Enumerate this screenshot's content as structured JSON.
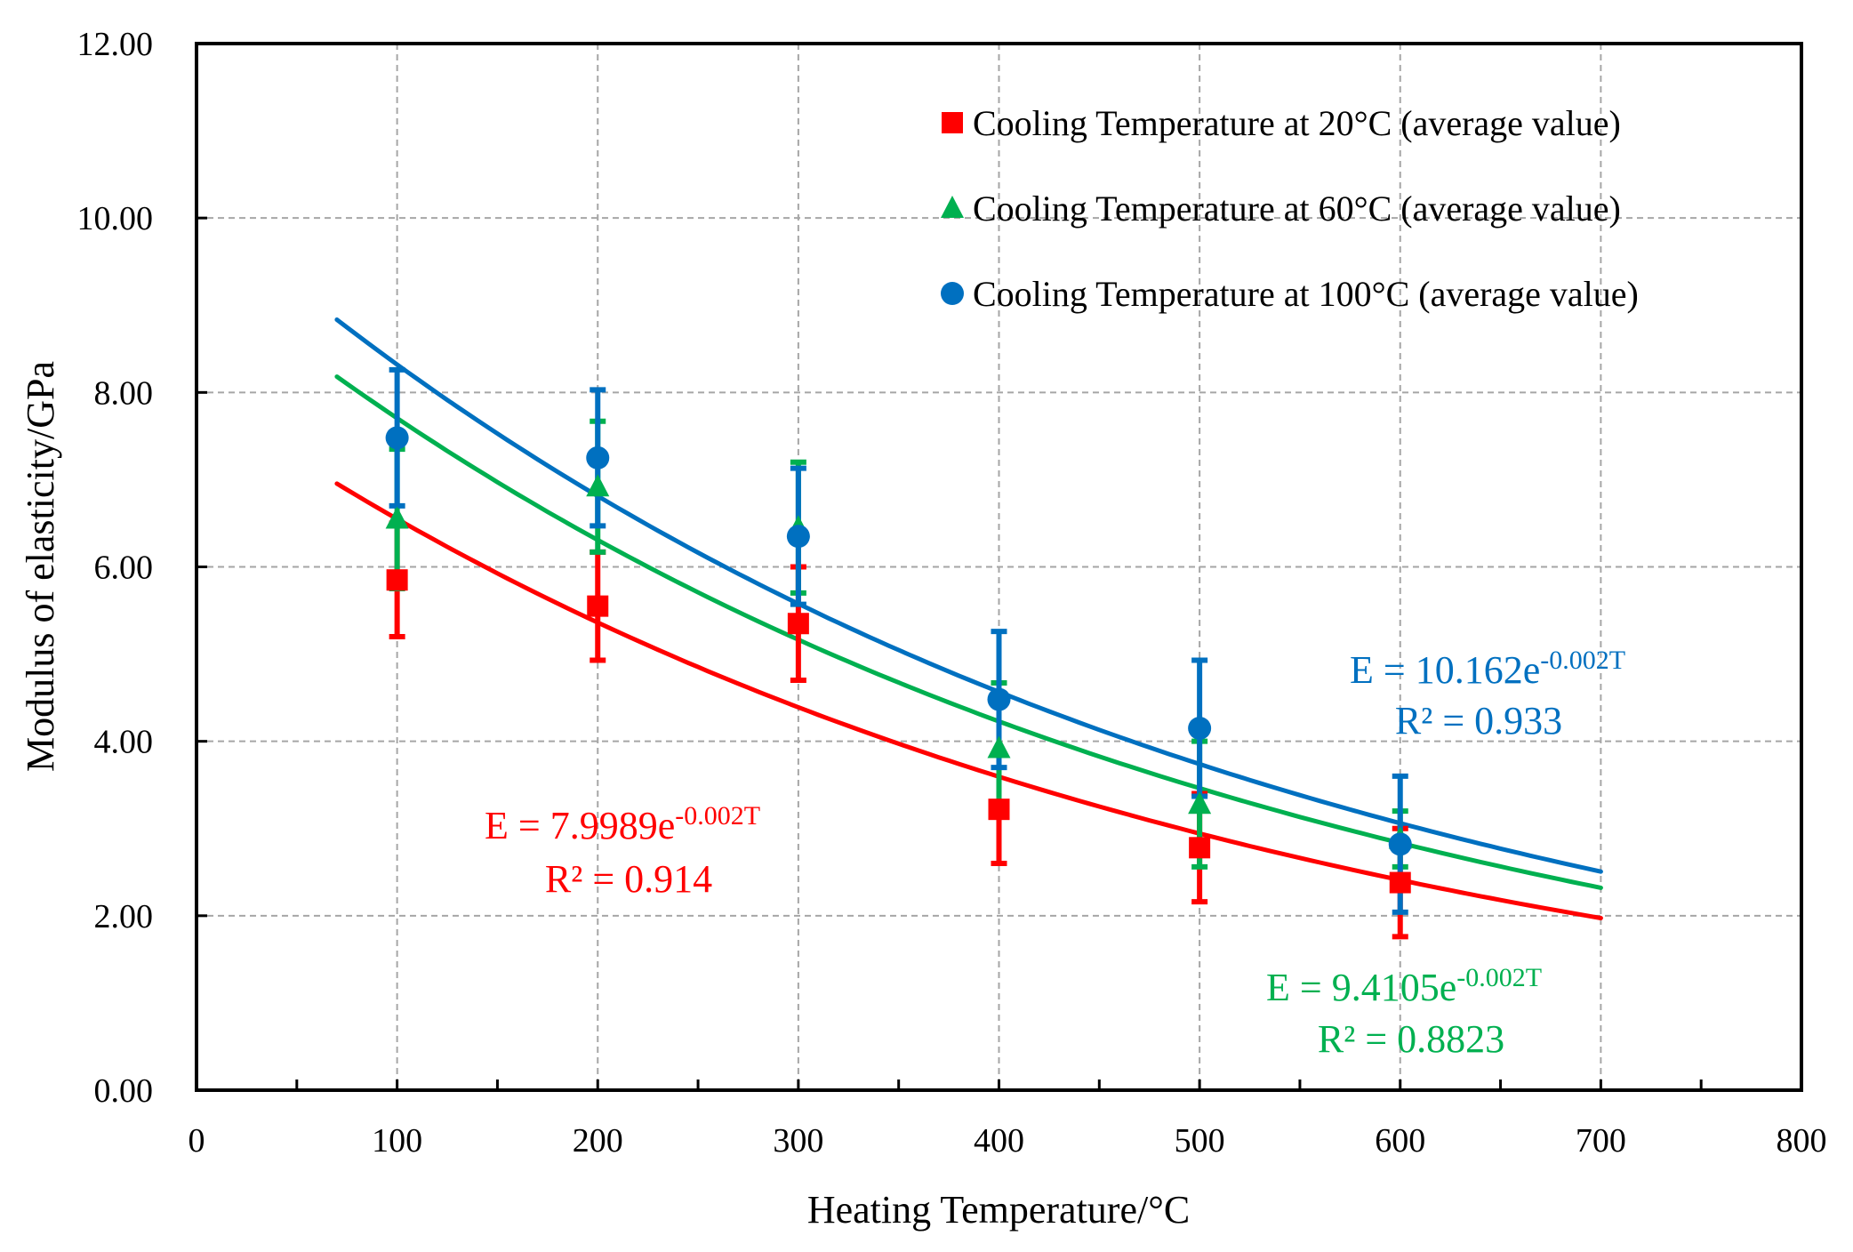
{
  "chart_data": {
    "type": "scatter",
    "xlabel": "Heating Temperature/°C",
    "ylabel": "Modulus of elasticity/GPa",
    "xlim": [
      0,
      800
    ],
    "ylim": [
      0,
      12
    ],
    "xticks": [
      {
        "value": 0,
        "label": "0"
      },
      {
        "value": 100,
        "label": "100"
      },
      {
        "value": 200,
        "label": "200"
      },
      {
        "value": 300,
        "label": "300"
      },
      {
        "value": 400,
        "label": "400"
      },
      {
        "value": 500,
        "label": "500"
      },
      {
        "value": 600,
        "label": "600"
      },
      {
        "value": 700,
        "label": "700"
      },
      {
        "value": 800,
        "label": "800"
      }
    ],
    "yticks": [
      {
        "value": 0,
        "label": "0.00"
      },
      {
        "value": 2,
        "label": "2.00"
      },
      {
        "value": 4,
        "label": "4.00"
      },
      {
        "value": 6,
        "label": "6.00"
      },
      {
        "value": 8,
        "label": "8.00"
      },
      {
        "value": 10,
        "label": "10.00"
      },
      {
        "value": 12,
        "label": "12.00"
      }
    ],
    "grid": true,
    "legend_position": "top-right",
    "series": [
      {
        "name": "Cooling Temperature at 20°C (average value)",
        "key": "cool20",
        "color": "#ff0000",
        "marker": "square",
        "x": [
          100,
          200,
          300,
          400,
          500,
          600
        ],
        "y": [
          5.85,
          5.55,
          5.35,
          3.22,
          2.78,
          2.38
        ],
        "error": [
          0.65,
          0.62,
          0.65,
          0.62,
          0.62,
          0.62
        ],
        "fit": {
          "a": 7.9989,
          "b": -0.002,
          "x_range": [
            70,
            700
          ],
          "equation_prefix": "E = 7.9989e",
          "equation_exponent": "-0.002T",
          "r2_text": "R² = 0.914"
        }
      },
      {
        "name": "Cooling Temperature at 60°C (average value)",
        "key": "cool60",
        "color": "#00b050",
        "marker": "triangle",
        "x": [
          100,
          200,
          300,
          400,
          500,
          600
        ],
        "y": [
          6.55,
          6.92,
          6.45,
          3.92,
          3.28,
          2.88
        ],
        "error": [
          0.8,
          0.75,
          0.75,
          0.75,
          0.72,
          0.32
        ],
        "fit": {
          "a": 9.4105,
          "b": -0.002,
          "x_range": [
            70,
            700
          ],
          "equation_prefix": "E = 9.4105e",
          "equation_exponent": "-0.002T",
          "r2_text": "R² = 0.8823"
        }
      },
      {
        "name": "Cooling Temperature at 100°C (average value)",
        "key": "cool100",
        "color": "#0070c0",
        "marker": "circle",
        "x": [
          100,
          200,
          300,
          400,
          500,
          600
        ],
        "y": [
          7.48,
          7.25,
          6.35,
          4.48,
          4.15,
          2.82
        ],
        "error": [
          0.78,
          0.78,
          0.78,
          0.78,
          0.78,
          0.78
        ],
        "fit": {
          "a": 10.162,
          "b": -0.002,
          "x_range": [
            70,
            700
          ],
          "equation_prefix": "E = 10.162e",
          "equation_exponent": "-0.002T",
          "r2_text": "R² = 0.933"
        }
      }
    ]
  }
}
